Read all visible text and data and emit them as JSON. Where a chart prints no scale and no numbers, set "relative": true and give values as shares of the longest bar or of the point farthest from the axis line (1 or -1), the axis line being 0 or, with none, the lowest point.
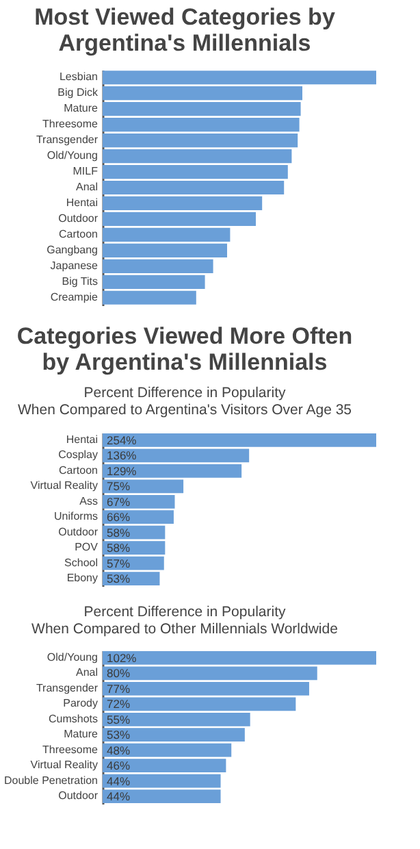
{
  "chart_data": [
    {
      "type": "bar",
      "orientation": "horizontal",
      "relative": true,
      "title": "Most Viewed Categories by\nArgentina's Millennials",
      "grid": false,
      "color": "#6a9fd8",
      "categories": [
        "Lesbian",
        "Big Dick",
        "Mature",
        "Threesome",
        "Transgender",
        "Old/Young",
        "MILF",
        "Anal",
        "Hentai",
        "Outdoor",
        "Cartoon",
        "Gangbang",
        "Japanese",
        "Big Tits",
        "Creampie"
      ],
      "values": [
        1,
        0.73,
        0.724,
        0.719,
        0.713,
        0.691,
        0.677,
        0.663,
        0.583,
        0.56,
        0.466,
        0.455,
        0.404,
        0.374,
        0.342
      ]
    },
    {
      "type": "bar",
      "orientation": "horizontal",
      "title": "Categories Viewed More Often\nby Argentina's Millennials",
      "subtitle": "Percent Difference in Popularity\nWhen Compared to Argentina's Visitors Over Age 35",
      "grid": false,
      "color": "#6a9fd8",
      "categories": [
        "Hentai",
        "Cosplay",
        "Cartoon",
        "Virtual Reality",
        "Ass",
        "Uniforms",
        "Outdoor",
        "POV",
        "School",
        "Ebony"
      ],
      "values": [
        254,
        136,
        129,
        75,
        67,
        66,
        58,
        58,
        57,
        53
      ],
      "value_labels": [
        "254%",
        "136%",
        "129%",
        "75%",
        "67%",
        "66%",
        "58%",
        "58%",
        "57%",
        "53%"
      ]
    },
    {
      "type": "bar",
      "orientation": "horizontal",
      "subtitle": "Percent Difference in Popularity\nWhen Compared to Other Millennials Worldwide",
      "grid": false,
      "color": "#6a9fd8",
      "categories": [
        "Old/Young",
        "Anal",
        "Transgender",
        "Parody",
        "Cumshots",
        "Mature",
        "Threesome",
        "Virtual Reality",
        "Double Penetration",
        "Outdoor"
      ],
      "values": [
        102,
        80,
        77,
        72,
        55,
        53,
        48,
        46,
        44,
        44
      ],
      "value_labels": [
        "102%",
        "80%",
        "77%",
        "72%",
        "55%",
        "53%",
        "48%",
        "46%",
        "44%",
        "44%"
      ]
    }
  ]
}
